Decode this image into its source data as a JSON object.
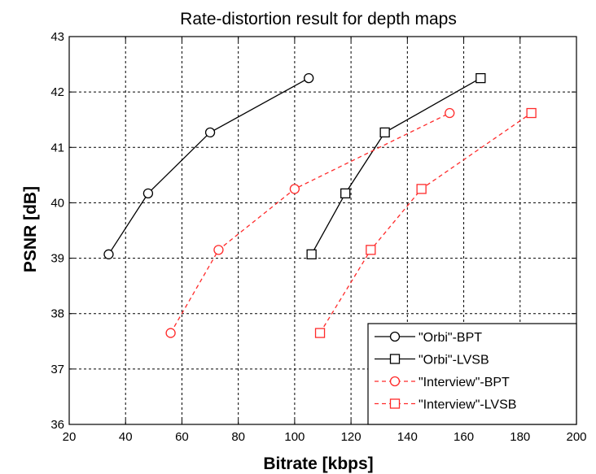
{
  "chart_data": {
    "type": "line",
    "title": "Rate-distortion result for depth maps",
    "xlabel": "Bitrate [kbps]",
    "ylabel": "PSNR [dB]",
    "xlim": [
      20,
      200
    ],
    "ylim": [
      36,
      43
    ],
    "xticks": [
      20,
      40,
      60,
      80,
      100,
      120,
      140,
      160,
      180,
      200
    ],
    "yticks": [
      36,
      37,
      38,
      39,
      40,
      41,
      42,
      43
    ],
    "grid": true,
    "legend_position": "bottom-right",
    "series": [
      {
        "name": "\"Orbi\"-BPT",
        "color": "#000000",
        "marker": "circle",
        "dash": "solid",
        "x": [
          34,
          48,
          70,
          105
        ],
        "y": [
          39.07,
          40.17,
          41.27,
          42.25
        ]
      },
      {
        "name": "\"Orbi\"-LVSB",
        "color": "#000000",
        "marker": "square",
        "dash": "solid",
        "x": [
          106,
          118,
          132,
          166
        ],
        "y": [
          39.07,
          40.17,
          41.27,
          42.25
        ]
      },
      {
        "name": "\"Interview\"-BPT",
        "color": "#ff2a2a",
        "marker": "circle",
        "dash": "dashed",
        "x": [
          56,
          73,
          100,
          155
        ],
        "y": [
          37.65,
          39.15,
          40.25,
          41.62
        ]
      },
      {
        "name": "\"Interview\"-LVSB",
        "color": "#ff2a2a",
        "marker": "square",
        "dash": "dashed",
        "x": [
          109,
          127,
          145,
          184
        ],
        "y": [
          37.65,
          39.15,
          40.25,
          41.62
        ]
      }
    ]
  }
}
